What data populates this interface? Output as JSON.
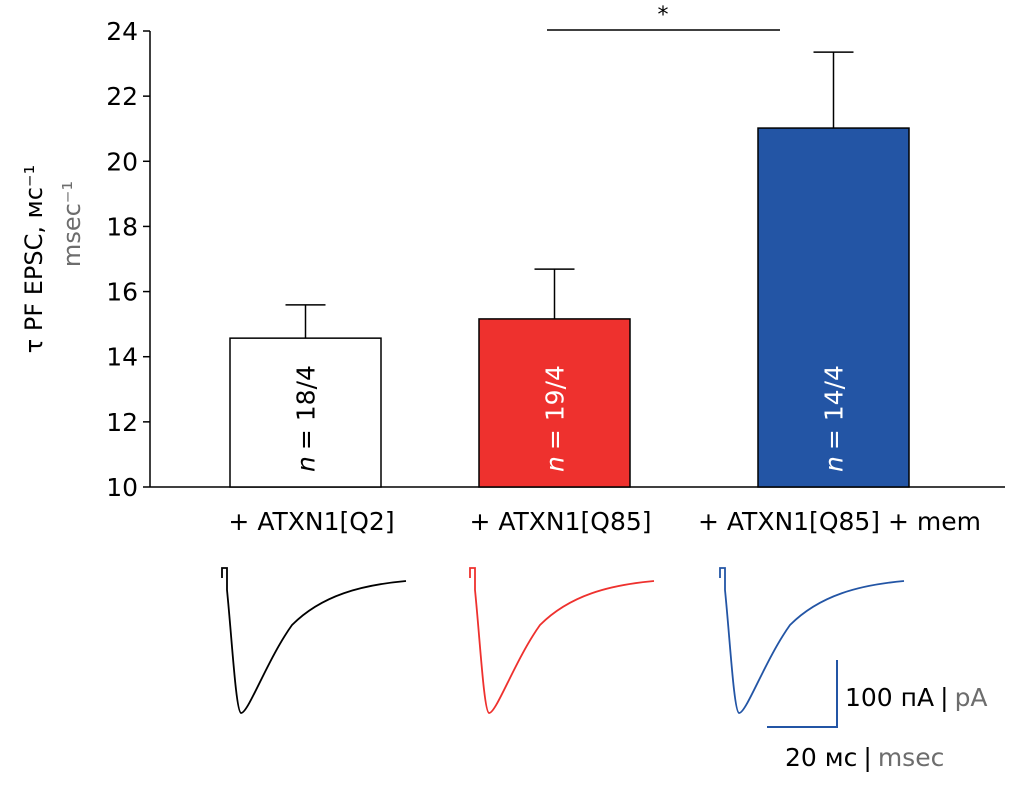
{
  "chart_data": {
    "type": "bar",
    "ylabel": "τ PF EPSC, мс⁻¹",
    "ylabel_en": "msec⁻¹",
    "ylim": [
      10,
      24
    ],
    "yticks": [
      "10",
      "12",
      "14",
      "16",
      "18",
      "20",
      "22",
      "24"
    ],
    "categories": [
      "+ ATXN1[Q2]",
      "+ ATXN1[Q85]",
      "+ ATXN1[Q85] + mem"
    ],
    "values": [
      14.57,
      15.16,
      21.02
    ],
    "errors": [
      1.02,
      1.53,
      2.33
    ],
    "n_labels": [
      "= 18/4",
      "= 19/4",
      "= 14/4"
    ],
    "n_prefix": "n",
    "colors": [
      "#ffffff",
      "#ee312e",
      "#2355a5"
    ],
    "trace_colors": [
      "#000000",
      "#ee312e",
      "#2355a5"
    ],
    "n_text_colors": [
      "#000000",
      "#ffffff",
      "#ffffff"
    ],
    "significance": {
      "from": 1,
      "to": 2,
      "label": "*"
    },
    "scale_bar": {
      "current": "100 пА",
      "current_en": "pA",
      "time": "20 мс",
      "time_en": "msec",
      "separator": "|"
    }
  }
}
